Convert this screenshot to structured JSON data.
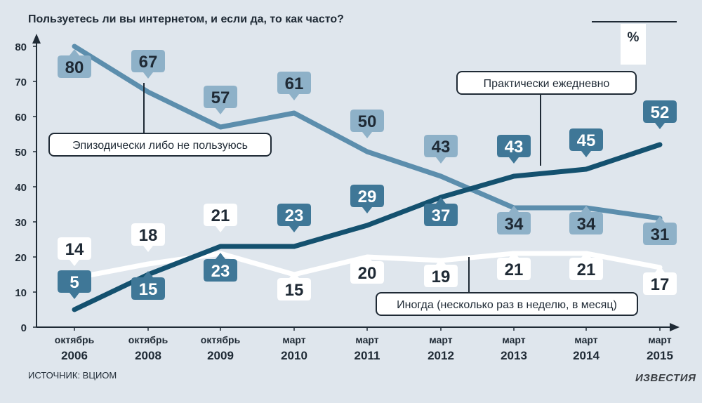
{
  "title": "Пользуетесь ли вы интернетом, и если да, то как часто?",
  "unit": "%",
  "source": "ИСТОЧНИК: ВЦИОМ",
  "logo": "ИЗВЕСТИЯ",
  "colors": {
    "background": "#dfe6ed",
    "episodic": "#5c8ead",
    "daily": "#14516f",
    "sometimes": "#ffffff",
    "episodic_label": "#8eb1c8",
    "daily_label": "#3f7797",
    "text_dark": "#1f2a35"
  },
  "chart_data": {
    "type": "line",
    "ylim": [
      0,
      80
    ],
    "yticks": [
      0,
      10,
      20,
      30,
      40,
      50,
      60,
      70,
      80
    ],
    "categories": [
      [
        "октябрь",
        "2006"
      ],
      [
        "октябрь",
        "2008"
      ],
      [
        "октябрь",
        "2009"
      ],
      [
        "март",
        "2010"
      ],
      [
        "март",
        "2011"
      ],
      [
        "март",
        "2012"
      ],
      [
        "март",
        "2013"
      ],
      [
        "март",
        "2014"
      ],
      [
        "март",
        "2015"
      ]
    ],
    "series": [
      {
        "key": "episodic",
        "name": "Эпизодически либо не пользуюсь",
        "values": [
          80,
          67,
          57,
          61,
          50,
          43,
          34,
          34,
          31
        ]
      },
      {
        "key": "daily",
        "name": "Практически ежедневно",
        "values": [
          5,
          15,
          23,
          23,
          29,
          37,
          43,
          45,
          52
        ]
      },
      {
        "key": "sometimes",
        "name": "Иногда (несколько раз в неделю, в месяц)",
        "values": [
          14,
          18,
          21,
          15,
          20,
          19,
          21,
          21,
          17
        ]
      }
    ]
  }
}
